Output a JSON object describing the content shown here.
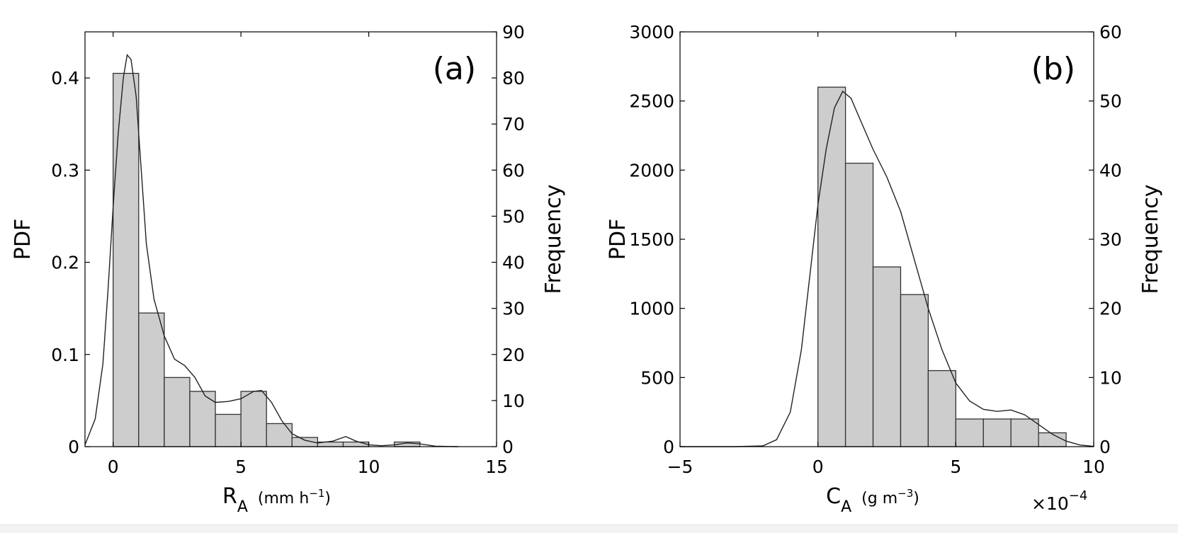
{
  "chart_data": [
    {
      "type": "bar",
      "panel_label": "(a)",
      "xlabel": {
        "main": "R",
        "sub": "A",
        "unit_pre": "(mm h",
        "unit_sup": "−1",
        "unit_post": ")"
      },
      "ylabel": "PDF",
      "y2label": "Frequency",
      "xlim": [
        -1.1,
        15
      ],
      "ylim": [
        0,
        0.45
      ],
      "y2lim": [
        0,
        90
      ],
      "x_ticks": [
        "0",
        "5",
        "10",
        "15"
      ],
      "x_tick_values": [
        0,
        5,
        10,
        15
      ],
      "y_ticks": [
        "0",
        "0.1",
        "0.2",
        "0.3",
        "0.4"
      ],
      "y_tick_values": [
        0,
        0.1,
        0.2,
        0.3,
        0.4
      ],
      "y2_ticks": [
        "0",
        "10",
        "20",
        "30",
        "40",
        "50",
        "60",
        "70",
        "80",
        "90"
      ],
      "y2_tick_values": [
        0,
        10,
        20,
        30,
        40,
        50,
        60,
        70,
        80,
        90
      ],
      "bins": [
        {
          "x0": 0,
          "x1": 1,
          "pdf": 0.405
        },
        {
          "x0": 1,
          "x1": 2,
          "pdf": 0.145
        },
        {
          "x0": 2,
          "x1": 3,
          "pdf": 0.075
        },
        {
          "x0": 3,
          "x1": 4,
          "pdf": 0.06
        },
        {
          "x0": 4,
          "x1": 5,
          "pdf": 0.035
        },
        {
          "x0": 5,
          "x1": 6,
          "pdf": 0.06
        },
        {
          "x0": 6,
          "x1": 7,
          "pdf": 0.025
        },
        {
          "x0": 7,
          "x1": 8,
          "pdf": 0.01
        },
        {
          "x0": 8,
          "x1": 9,
          "pdf": 0.005
        },
        {
          "x0": 9,
          "x1": 10,
          "pdf": 0.005
        },
        {
          "x0": 10,
          "x1": 11,
          "pdf": 0.0
        },
        {
          "x0": 11,
          "x1": 12,
          "pdf": 0.005
        }
      ],
      "curve": [
        [
          -1.1,
          0.002
        ],
        [
          -0.7,
          0.03
        ],
        [
          -0.4,
          0.09
        ],
        [
          -0.2,
          0.17
        ],
        [
          0.0,
          0.26
        ],
        [
          0.2,
          0.34
        ],
        [
          0.4,
          0.4
        ],
        [
          0.55,
          0.425
        ],
        [
          0.7,
          0.42
        ],
        [
          0.9,
          0.38
        ],
        [
          1.1,
          0.3
        ],
        [
          1.3,
          0.22
        ],
        [
          1.6,
          0.16
        ],
        [
          2.0,
          0.12
        ],
        [
          2.4,
          0.095
        ],
        [
          2.8,
          0.088
        ],
        [
          3.2,
          0.075
        ],
        [
          3.6,
          0.055
        ],
        [
          4.0,
          0.048
        ],
        [
          4.5,
          0.049
        ],
        [
          5.0,
          0.052
        ],
        [
          5.5,
          0.06
        ],
        [
          5.8,
          0.061
        ],
        [
          6.2,
          0.048
        ],
        [
          6.6,
          0.028
        ],
        [
          7.0,
          0.014
        ],
        [
          7.5,
          0.007
        ],
        [
          8.0,
          0.004
        ],
        [
          8.6,
          0.006
        ],
        [
          9.1,
          0.011
        ],
        [
          9.5,
          0.006
        ],
        [
          10.0,
          0.002
        ],
        [
          10.5,
          0.001
        ],
        [
          11.0,
          0.002
        ],
        [
          11.5,
          0.004
        ],
        [
          12.0,
          0.003
        ],
        [
          12.6,
          0.0005
        ],
        [
          13.5,
          0.0
        ]
      ],
      "grid": false
    },
    {
      "type": "bar",
      "panel_label": "(b)",
      "xlabel": {
        "main": "C",
        "sub": "A",
        "unit_pre": "(g m",
        "unit_sup": "−3",
        "unit_post": ")"
      },
      "ylabel": "PDF",
      "y2label": "Frequency",
      "x_multiplier": {
        "base": "×10",
        "exp": "−4"
      },
      "xlim": [
        -5,
        10
      ],
      "ylim": [
        0,
        3000
      ],
      "y2lim": [
        0,
        60
      ],
      "x_ticks": [
        "−5",
        "0",
        "5",
        "10"
      ],
      "x_tick_values": [
        -5,
        0,
        5,
        10
      ],
      "y_ticks": [
        "0",
        "500",
        "1000",
        "1500",
        "2000",
        "2500",
        "3000"
      ],
      "y_tick_values": [
        0,
        500,
        1000,
        1500,
        2000,
        2500,
        3000
      ],
      "y2_ticks": [
        "0",
        "10",
        "20",
        "30",
        "40",
        "50",
        "60"
      ],
      "y2_tick_values": [
        0,
        10,
        20,
        30,
        40,
        50,
        60
      ],
      "bins": [
        {
          "x0": 0,
          "x1": 1,
          "pdf": 2600
        },
        {
          "x0": 1,
          "x1": 2,
          "pdf": 2050
        },
        {
          "x0": 2,
          "x1": 3,
          "pdf": 1300
        },
        {
          "x0": 3,
          "x1": 4,
          "pdf": 1100
        },
        {
          "x0": 4,
          "x1": 5,
          "pdf": 550
        },
        {
          "x0": 5,
          "x1": 6,
          "pdf": 200
        },
        {
          "x0": 6,
          "x1": 7,
          "pdf": 200
        },
        {
          "x0": 7,
          "x1": 8,
          "pdf": 200
        },
        {
          "x0": 8,
          "x1": 9,
          "pdf": 100
        }
      ],
      "curve": [
        [
          -5,
          0
        ],
        [
          -3,
          0
        ],
        [
          -2.0,
          5
        ],
        [
          -1.5,
          50
        ],
        [
          -1.0,
          250
        ],
        [
          -0.6,
          700
        ],
        [
          -0.2,
          1400
        ],
        [
          0.0,
          1750
        ],
        [
          0.3,
          2150
        ],
        [
          0.6,
          2450
        ],
        [
          0.9,
          2570
        ],
        [
          1.2,
          2520
        ],
        [
          1.5,
          2380
        ],
        [
          2.0,
          2150
        ],
        [
          2.5,
          1950
        ],
        [
          3.0,
          1700
        ],
        [
          3.5,
          1350
        ],
        [
          4.0,
          1000
        ],
        [
          4.5,
          700
        ],
        [
          5.0,
          460
        ],
        [
          5.5,
          330
        ],
        [
          6.0,
          270
        ],
        [
          6.5,
          255
        ],
        [
          7.0,
          265
        ],
        [
          7.5,
          230
        ],
        [
          8.0,
          160
        ],
        [
          8.5,
          90
        ],
        [
          9.0,
          40
        ],
        [
          9.5,
          12
        ],
        [
          10.0,
          2
        ]
      ],
      "grid": false
    }
  ]
}
